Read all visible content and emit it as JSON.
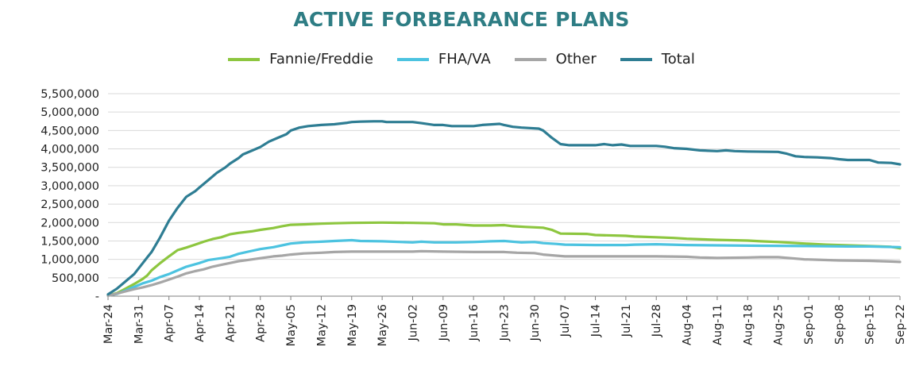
{
  "chart_data": {
    "type": "line",
    "title": "ACTIVE FORBEARANCE PLANS",
    "colors": {
      "title": "#2e7d84",
      "grid": "#d9d9d9",
      "axis": "#7f7f7f"
    },
    "ylim": [
      0,
      5500000
    ],
    "yticks": [
      {
        "value": 0,
        "label": "-"
      },
      {
        "value": 500000,
        "label": "500,000"
      },
      {
        "value": 1000000,
        "label": "1,000,000"
      },
      {
        "value": 1500000,
        "label": "1,500,000"
      },
      {
        "value": 2000000,
        "label": "2,000,000"
      },
      {
        "value": 2500000,
        "label": "2,500,000"
      },
      {
        "value": 3000000,
        "label": "3,000,000"
      },
      {
        "value": 3500000,
        "label": "3,500,000"
      },
      {
        "value": 4000000,
        "label": "4,000,000"
      },
      {
        "value": 4500000,
        "label": "4,500,000"
      },
      {
        "value": 5000000,
        "label": "5,000,000"
      },
      {
        "value": 5500000,
        "label": "5,500,000"
      }
    ],
    "x_range_days": [
      0,
      182
    ],
    "xticks": [
      {
        "day": 0,
        "label": "Mar-24"
      },
      {
        "day": 7,
        "label": "Mar-31"
      },
      {
        "day": 14,
        "label": "Apr-07"
      },
      {
        "day": 21,
        "label": "Apr-14"
      },
      {
        "day": 28,
        "label": "Apr-21"
      },
      {
        "day": 35,
        "label": "Apr-28"
      },
      {
        "day": 42,
        "label": "May-05"
      },
      {
        "day": 49,
        "label": "May-12"
      },
      {
        "day": 56,
        "label": "May-19"
      },
      {
        "day": 63,
        "label": "May-26"
      },
      {
        "day": 70,
        "label": "Jun-02"
      },
      {
        "day": 77,
        "label": "Jun-09"
      },
      {
        "day": 84,
        "label": "Jun-16"
      },
      {
        "day": 91,
        "label": "Jun-23"
      },
      {
        "day": 98,
        "label": "Jun-30"
      },
      {
        "day": 105,
        "label": "Jul-07"
      },
      {
        "day": 112,
        "label": "Jul-14"
      },
      {
        "day": 119,
        "label": "Jul-21"
      },
      {
        "day": 126,
        "label": "Jul-28"
      },
      {
        "day": 133,
        "label": "Aug-04"
      },
      {
        "day": 140,
        "label": "Aug-11"
      },
      {
        "day": 147,
        "label": "Aug-18"
      },
      {
        "day": 154,
        "label": "Aug-25"
      },
      {
        "day": 161,
        "label": "Sep-01"
      },
      {
        "day": 168,
        "label": "Sep-08"
      },
      {
        "day": 175,
        "label": "Sep-15"
      },
      {
        "day": 182,
        "label": "Sep-22"
      }
    ],
    "series": [
      {
        "name": "Fannie/Freddie",
        "color": "#8dc63f",
        "points": [
          [
            0,
            20000
          ],
          [
            2,
            80000
          ],
          [
            4,
            200000
          ],
          [
            6,
            330000
          ],
          [
            8,
            470000
          ],
          [
            9,
            560000
          ],
          [
            10,
            700000
          ],
          [
            12,
            900000
          ],
          [
            14,
            1080000
          ],
          [
            16,
            1250000
          ],
          [
            18,
            1320000
          ],
          [
            20,
            1400000
          ],
          [
            22,
            1480000
          ],
          [
            24,
            1550000
          ],
          [
            26,
            1600000
          ],
          [
            28,
            1680000
          ],
          [
            30,
            1720000
          ],
          [
            33,
            1760000
          ],
          [
            35,
            1800000
          ],
          [
            38,
            1850000
          ],
          [
            40,
            1900000
          ],
          [
            42,
            1940000
          ],
          [
            45,
            1950000
          ],
          [
            49,
            1970000
          ],
          [
            52,
            1980000
          ],
          [
            56,
            1990000
          ],
          [
            63,
            2000000
          ],
          [
            70,
            1990000
          ],
          [
            75,
            1980000
          ],
          [
            77,
            1950000
          ],
          [
            80,
            1950000
          ],
          [
            84,
            1920000
          ],
          [
            88,
            1920000
          ],
          [
            91,
            1930000
          ],
          [
            93,
            1900000
          ],
          [
            96,
            1880000
          ],
          [
            100,
            1860000
          ],
          [
            102,
            1800000
          ],
          [
            104,
            1700000
          ],
          [
            110,
            1690000
          ],
          [
            112,
            1660000
          ],
          [
            119,
            1640000
          ],
          [
            121,
            1620000
          ],
          [
            126,
            1600000
          ],
          [
            130,
            1580000
          ],
          [
            133,
            1560000
          ],
          [
            140,
            1530000
          ],
          [
            147,
            1510000
          ],
          [
            150,
            1490000
          ],
          [
            154,
            1470000
          ],
          [
            160,
            1430000
          ],
          [
            165,
            1400000
          ],
          [
            170,
            1380000
          ],
          [
            175,
            1360000
          ],
          [
            180,
            1340000
          ],
          [
            182,
            1300000
          ]
        ]
      },
      {
        "name": "FHA/VA",
        "color": "#4cc3e0",
        "points": [
          [
            0,
            20000
          ],
          [
            2,
            60000
          ],
          [
            4,
            150000
          ],
          [
            6,
            250000
          ],
          [
            8,
            350000
          ],
          [
            10,
            420000
          ],
          [
            12,
            520000
          ],
          [
            14,
            600000
          ],
          [
            16,
            700000
          ],
          [
            18,
            800000
          ],
          [
            21,
            900000
          ],
          [
            23,
            980000
          ],
          [
            26,
            1030000
          ],
          [
            28,
            1070000
          ],
          [
            30,
            1150000
          ],
          [
            33,
            1230000
          ],
          [
            35,
            1280000
          ],
          [
            38,
            1330000
          ],
          [
            40,
            1380000
          ],
          [
            42,
            1430000
          ],
          [
            45,
            1460000
          ],
          [
            49,
            1480000
          ],
          [
            52,
            1500000
          ],
          [
            56,
            1520000
          ],
          [
            58,
            1500000
          ],
          [
            63,
            1490000
          ],
          [
            70,
            1460000
          ],
          [
            72,
            1480000
          ],
          [
            75,
            1460000
          ],
          [
            80,
            1460000
          ],
          [
            84,
            1470000
          ],
          [
            88,
            1490000
          ],
          [
            91,
            1500000
          ],
          [
            95,
            1460000
          ],
          [
            98,
            1470000
          ],
          [
            100,
            1440000
          ],
          [
            103,
            1420000
          ],
          [
            105,
            1400000
          ],
          [
            112,
            1390000
          ],
          [
            119,
            1390000
          ],
          [
            121,
            1400000
          ],
          [
            126,
            1410000
          ],
          [
            133,
            1390000
          ],
          [
            140,
            1380000
          ],
          [
            150,
            1370000
          ],
          [
            160,
            1360000
          ],
          [
            170,
            1350000
          ],
          [
            175,
            1350000
          ],
          [
            182,
            1330000
          ]
        ]
      },
      {
        "name": "Other",
        "color": "#a6a6a6",
        "points": [
          [
            0,
            10000
          ],
          [
            2,
            70000
          ],
          [
            4,
            130000
          ],
          [
            6,
            190000
          ],
          [
            8,
            240000
          ],
          [
            10,
            300000
          ],
          [
            12,
            370000
          ],
          [
            14,
            450000
          ],
          [
            16,
            530000
          ],
          [
            18,
            620000
          ],
          [
            20,
            680000
          ],
          [
            22,
            730000
          ],
          [
            24,
            800000
          ],
          [
            26,
            850000
          ],
          [
            28,
            900000
          ],
          [
            30,
            950000
          ],
          [
            32,
            980000
          ],
          [
            35,
            1030000
          ],
          [
            38,
            1080000
          ],
          [
            40,
            1100000
          ],
          [
            42,
            1130000
          ],
          [
            45,
            1160000
          ],
          [
            49,
            1180000
          ],
          [
            52,
            1200000
          ],
          [
            56,
            1210000
          ],
          [
            63,
            1210000
          ],
          [
            70,
            1210000
          ],
          [
            72,
            1220000
          ],
          [
            77,
            1210000
          ],
          [
            84,
            1200000
          ],
          [
            91,
            1200000
          ],
          [
            94,
            1180000
          ],
          [
            98,
            1170000
          ],
          [
            100,
            1130000
          ],
          [
            103,
            1100000
          ],
          [
            105,
            1080000
          ],
          [
            112,
            1080000
          ],
          [
            119,
            1080000
          ],
          [
            126,
            1080000
          ],
          [
            133,
            1070000
          ],
          [
            136,
            1050000
          ],
          [
            140,
            1040000
          ],
          [
            147,
            1050000
          ],
          [
            150,
            1060000
          ],
          [
            154,
            1060000
          ],
          [
            157,
            1030000
          ],
          [
            160,
            1000000
          ],
          [
            163,
            990000
          ],
          [
            168,
            970000
          ],
          [
            175,
            960000
          ],
          [
            180,
            940000
          ],
          [
            182,
            930000
          ]
        ]
      },
      {
        "name": "Total",
        "color": "#2e7d93",
        "points": [
          [
            0,
            50000
          ],
          [
            2,
            200000
          ],
          [
            4,
            400000
          ],
          [
            6,
            600000
          ],
          [
            8,
            900000
          ],
          [
            9,
            1050000
          ],
          [
            10,
            1200000
          ],
          [
            12,
            1600000
          ],
          [
            14,
            2050000
          ],
          [
            16,
            2400000
          ],
          [
            18,
            2700000
          ],
          [
            20,
            2850000
          ],
          [
            21,
            2950000
          ],
          [
            23,
            3150000
          ],
          [
            25,
            3350000
          ],
          [
            27,
            3500000
          ],
          [
            28,
            3600000
          ],
          [
            30,
            3750000
          ],
          [
            31,
            3850000
          ],
          [
            33,
            3950000
          ],
          [
            35,
            4050000
          ],
          [
            37,
            4200000
          ],
          [
            39,
            4300000
          ],
          [
            41,
            4400000
          ],
          [
            42,
            4500000
          ],
          [
            44,
            4580000
          ],
          [
            46,
            4620000
          ],
          [
            49,
            4650000
          ],
          [
            52,
            4670000
          ],
          [
            55,
            4710000
          ],
          [
            56,
            4730000
          ],
          [
            58,
            4740000
          ],
          [
            61,
            4750000
          ],
          [
            63,
            4750000
          ],
          [
            64,
            4730000
          ],
          [
            70,
            4730000
          ],
          [
            72,
            4700000
          ],
          [
            75,
            4650000
          ],
          [
            77,
            4650000
          ],
          [
            79,
            4620000
          ],
          [
            84,
            4620000
          ],
          [
            86,
            4650000
          ],
          [
            90,
            4680000
          ],
          [
            91,
            4650000
          ],
          [
            93,
            4600000
          ],
          [
            95,
            4580000
          ],
          [
            99,
            4550000
          ],
          [
            100,
            4500000
          ],
          [
            102,
            4300000
          ],
          [
            104,
            4130000
          ],
          [
            106,
            4100000
          ],
          [
            112,
            4100000
          ],
          [
            114,
            4130000
          ],
          [
            116,
            4100000
          ],
          [
            118,
            4120000
          ],
          [
            120,
            4080000
          ],
          [
            126,
            4080000
          ],
          [
            128,
            4060000
          ],
          [
            130,
            4020000
          ],
          [
            133,
            4000000
          ],
          [
            136,
            3960000
          ],
          [
            140,
            3940000
          ],
          [
            142,
            3960000
          ],
          [
            144,
            3940000
          ],
          [
            147,
            3930000
          ],
          [
            154,
            3920000
          ],
          [
            156,
            3870000
          ],
          [
            158,
            3800000
          ],
          [
            160,
            3780000
          ],
          [
            163,
            3770000
          ],
          [
            166,
            3750000
          ],
          [
            168,
            3720000
          ],
          [
            170,
            3700000
          ],
          [
            175,
            3700000
          ],
          [
            177,
            3630000
          ],
          [
            180,
            3620000
          ],
          [
            182,
            3580000
          ]
        ]
      }
    ]
  }
}
